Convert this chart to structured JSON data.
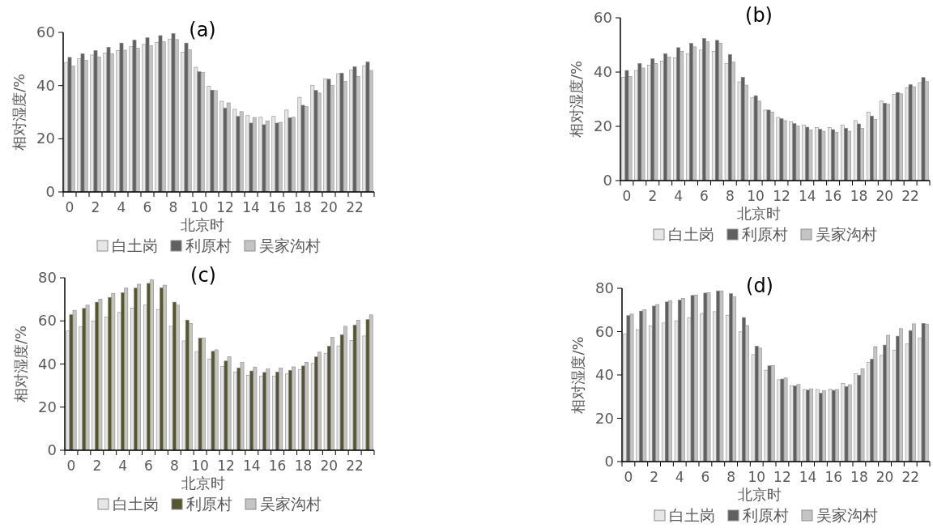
{
  "chart_data": [
    {
      "type": "bar",
      "title": "(a)",
      "xlabel": "北京时",
      "ylabel": "相对湿度/%",
      "categories": [
        "0",
        null,
        "2",
        null,
        "4",
        null,
        "6",
        null,
        "8",
        null,
        "10",
        null,
        "12",
        null,
        "14",
        null,
        "16",
        null,
        "18",
        null,
        "20",
        null,
        "22",
        null
      ],
      "ylim": [
        0,
        60
      ],
      "yticks": [
        0,
        20,
        40,
        60
      ],
      "legend": "bottom",
      "series": [
        {
          "name": "白土岗",
          "color": "#e6e6e6",
          "values": [
            48.7,
            50.1,
            51.5,
            52.3,
            53.2,
            54.6,
            55.5,
            56.3,
            57.5,
            52.6,
            46.9,
            39.8,
            34.1,
            31.1,
            28.7,
            28.1,
            28.4,
            30.8,
            35.6,
            40.0,
            42.5,
            44.5,
            45.8,
            47.5
          ]
        },
        {
          "name": "利原村",
          "color": "#606060",
          "values": [
            50.6,
            52.0,
            53.2,
            54.4,
            56.0,
            57.1,
            58.0,
            58.8,
            59.6,
            56.0,
            45.2,
            38.3,
            31.5,
            28.4,
            25.9,
            25.3,
            25.9,
            27.9,
            32.6,
            38.2,
            42.4,
            44.7,
            47.1,
            48.9
          ]
        },
        {
          "name": "吴家沟村",
          "color": "#c4c4c4",
          "values": [
            47.3,
            49.5,
            50.8,
            52.0,
            53.3,
            54.1,
            55.0,
            56.5,
            57.3,
            53.5,
            44.9,
            38.1,
            33.5,
            30.2,
            28.0,
            26.7,
            26.2,
            28.1,
            32.1,
            37.2,
            40.0,
            41.6,
            43.5,
            45.7
          ]
        }
      ]
    },
    {
      "type": "bar",
      "title": "(b)",
      "xlabel": "北京时",
      "ylabel": "相对湿度/%",
      "categories": [
        "0",
        null,
        "2",
        null,
        "4",
        null,
        "6",
        null,
        "8",
        null,
        "10",
        null,
        "12",
        null,
        "14",
        null,
        "16",
        null,
        "18",
        null,
        "20",
        null,
        "22",
        null
      ],
      "ylim": [
        0,
        60
      ],
      "yticks": [
        0,
        20,
        40,
        60
      ],
      "legend": "bottom",
      "series": [
        {
          "name": "白土岗",
          "color": "#e6e6e6",
          "values": [
            38.1,
            40.6,
            42.6,
            44.0,
            45.2,
            46.8,
            48.1,
            47.6,
            43.2,
            36.4,
            30.5,
            26.0,
            23.3,
            21.6,
            20.4,
            19.6,
            19.5,
            20.4,
            22.1,
            25.3,
            29.3,
            31.8,
            34.3,
            36.1
          ]
        },
        {
          "name": "利原村",
          "color": "#606060",
          "values": [
            40.6,
            43.2,
            44.9,
            46.8,
            49.0,
            50.6,
            52.4,
            51.7,
            46.5,
            38.1,
            31.3,
            26.0,
            22.8,
            21.0,
            19.7,
            18.9,
            18.8,
            19.3,
            20.9,
            23.8,
            28.5,
            32.5,
            35.4,
            38.0
          ]
        },
        {
          "name": "吴家沟村",
          "color": "#c4c4c4",
          "values": [
            38.4,
            41.5,
            43.2,
            45.5,
            47.7,
            49.3,
            51.2,
            50.7,
            43.7,
            35.2,
            29.3,
            25.3,
            22.1,
            20.1,
            18.6,
            18.2,
            17.8,
            18.2,
            19.3,
            22.6,
            28.2,
            32.0,
            34.6,
            36.5
          ]
        }
      ]
    },
    {
      "type": "bar",
      "title": "(c)",
      "xlabel": "北京时",
      "ylabel": "相对湿度/%",
      "categories": [
        "0",
        null,
        "2",
        null,
        "4",
        null,
        "6",
        null,
        "8",
        null,
        "10",
        null,
        "12",
        null,
        "14",
        null,
        "16",
        null,
        "18",
        null,
        "20",
        null,
        "22",
        null
      ],
      "ylim": [
        0,
        80
      ],
      "yticks": [
        0,
        20,
        40,
        60,
        80
      ],
      "legend": "bottom",
      "series": [
        {
          "name": "白土岗",
          "color": "#e6e6e6",
          "values": [
            55.3,
            57.2,
            59.9,
            61.8,
            63.9,
            65.9,
            67.3,
            65.3,
            57.5,
            50.7,
            45.6,
            42.2,
            38.8,
            36.2,
            34.8,
            34.3,
            34.3,
            35.4,
            37.3,
            40.3,
            45.0,
            48.4,
            50.9,
            53.0
          ]
        },
        {
          "name": "利原村",
          "color": "#55552e",
          "values": [
            62.9,
            65.8,
            68.7,
            70.9,
            73.1,
            75.2,
            77.4,
            75.4,
            68.7,
            60.4,
            52.0,
            45.9,
            41.4,
            38.2,
            36.8,
            36.1,
            36.3,
            37.1,
            39.1,
            43.3,
            48.3,
            53.6,
            58.1,
            60.6
          ]
        },
        {
          "name": "吴家沟村",
          "color": "#c4c4c4",
          "values": [
            64.9,
            67.3,
            70.1,
            72.8,
            75.2,
            77.0,
            79.0,
            76.6,
            67.3,
            58.8,
            52.0,
            46.6,
            43.4,
            40.7,
            38.6,
            37.7,
            38.1,
            38.7,
            40.8,
            45.5,
            52.4,
            57.5,
            60.3,
            62.8
          ]
        }
      ]
    },
    {
      "type": "bar",
      "title": "(d)",
      "xlabel": "北京时",
      "ylabel": "相对湿度/%",
      "categories": [
        "0",
        null,
        "2",
        null,
        "4",
        null,
        "6",
        null,
        "8",
        null,
        "10",
        null,
        "12",
        null,
        "14",
        null,
        "16",
        null,
        "18",
        null,
        "20",
        null,
        "22",
        null
      ],
      "ylim": [
        0,
        80
      ],
      "yticks": [
        0,
        20,
        40,
        60,
        80
      ],
      "legend": "bottom",
      "series": [
        {
          "name": "白土岗",
          "color": "#e6e6e6",
          "values": [
            59.0,
            60.9,
            62.7,
            64.0,
            65.0,
            66.5,
            68.4,
            69.2,
            67.6,
            59.9,
            49.4,
            42.2,
            37.8,
            35.1,
            33.3,
            33.3,
            33.4,
            36.1,
            40.6,
            45.8,
            49.0,
            51.5,
            54.3,
            57.1
          ]
        },
        {
          "name": "利原村",
          "color": "#606060",
          "values": [
            67.4,
            69.5,
            71.8,
            73.7,
            74.6,
            76.7,
            77.8,
            78.8,
            77.5,
            66.5,
            53.3,
            44.2,
            38.1,
            34.9,
            33.0,
            31.6,
            32.9,
            34.6,
            39.9,
            47.3,
            53.8,
            57.9,
            60.5,
            63.8
          ]
        },
        {
          "name": "吴家沟村",
          "color": "#c4c4c4",
          "values": [
            68.1,
            70.1,
            72.5,
            74.3,
            75.4,
            76.9,
            78.0,
            78.8,
            76.1,
            62.8,
            52.4,
            44.3,
            38.6,
            35.6,
            33.6,
            32.8,
            33.3,
            35.5,
            42.9,
            53.1,
            58.3,
            61.4,
            63.6,
            63.5
          ]
        }
      ]
    }
  ]
}
